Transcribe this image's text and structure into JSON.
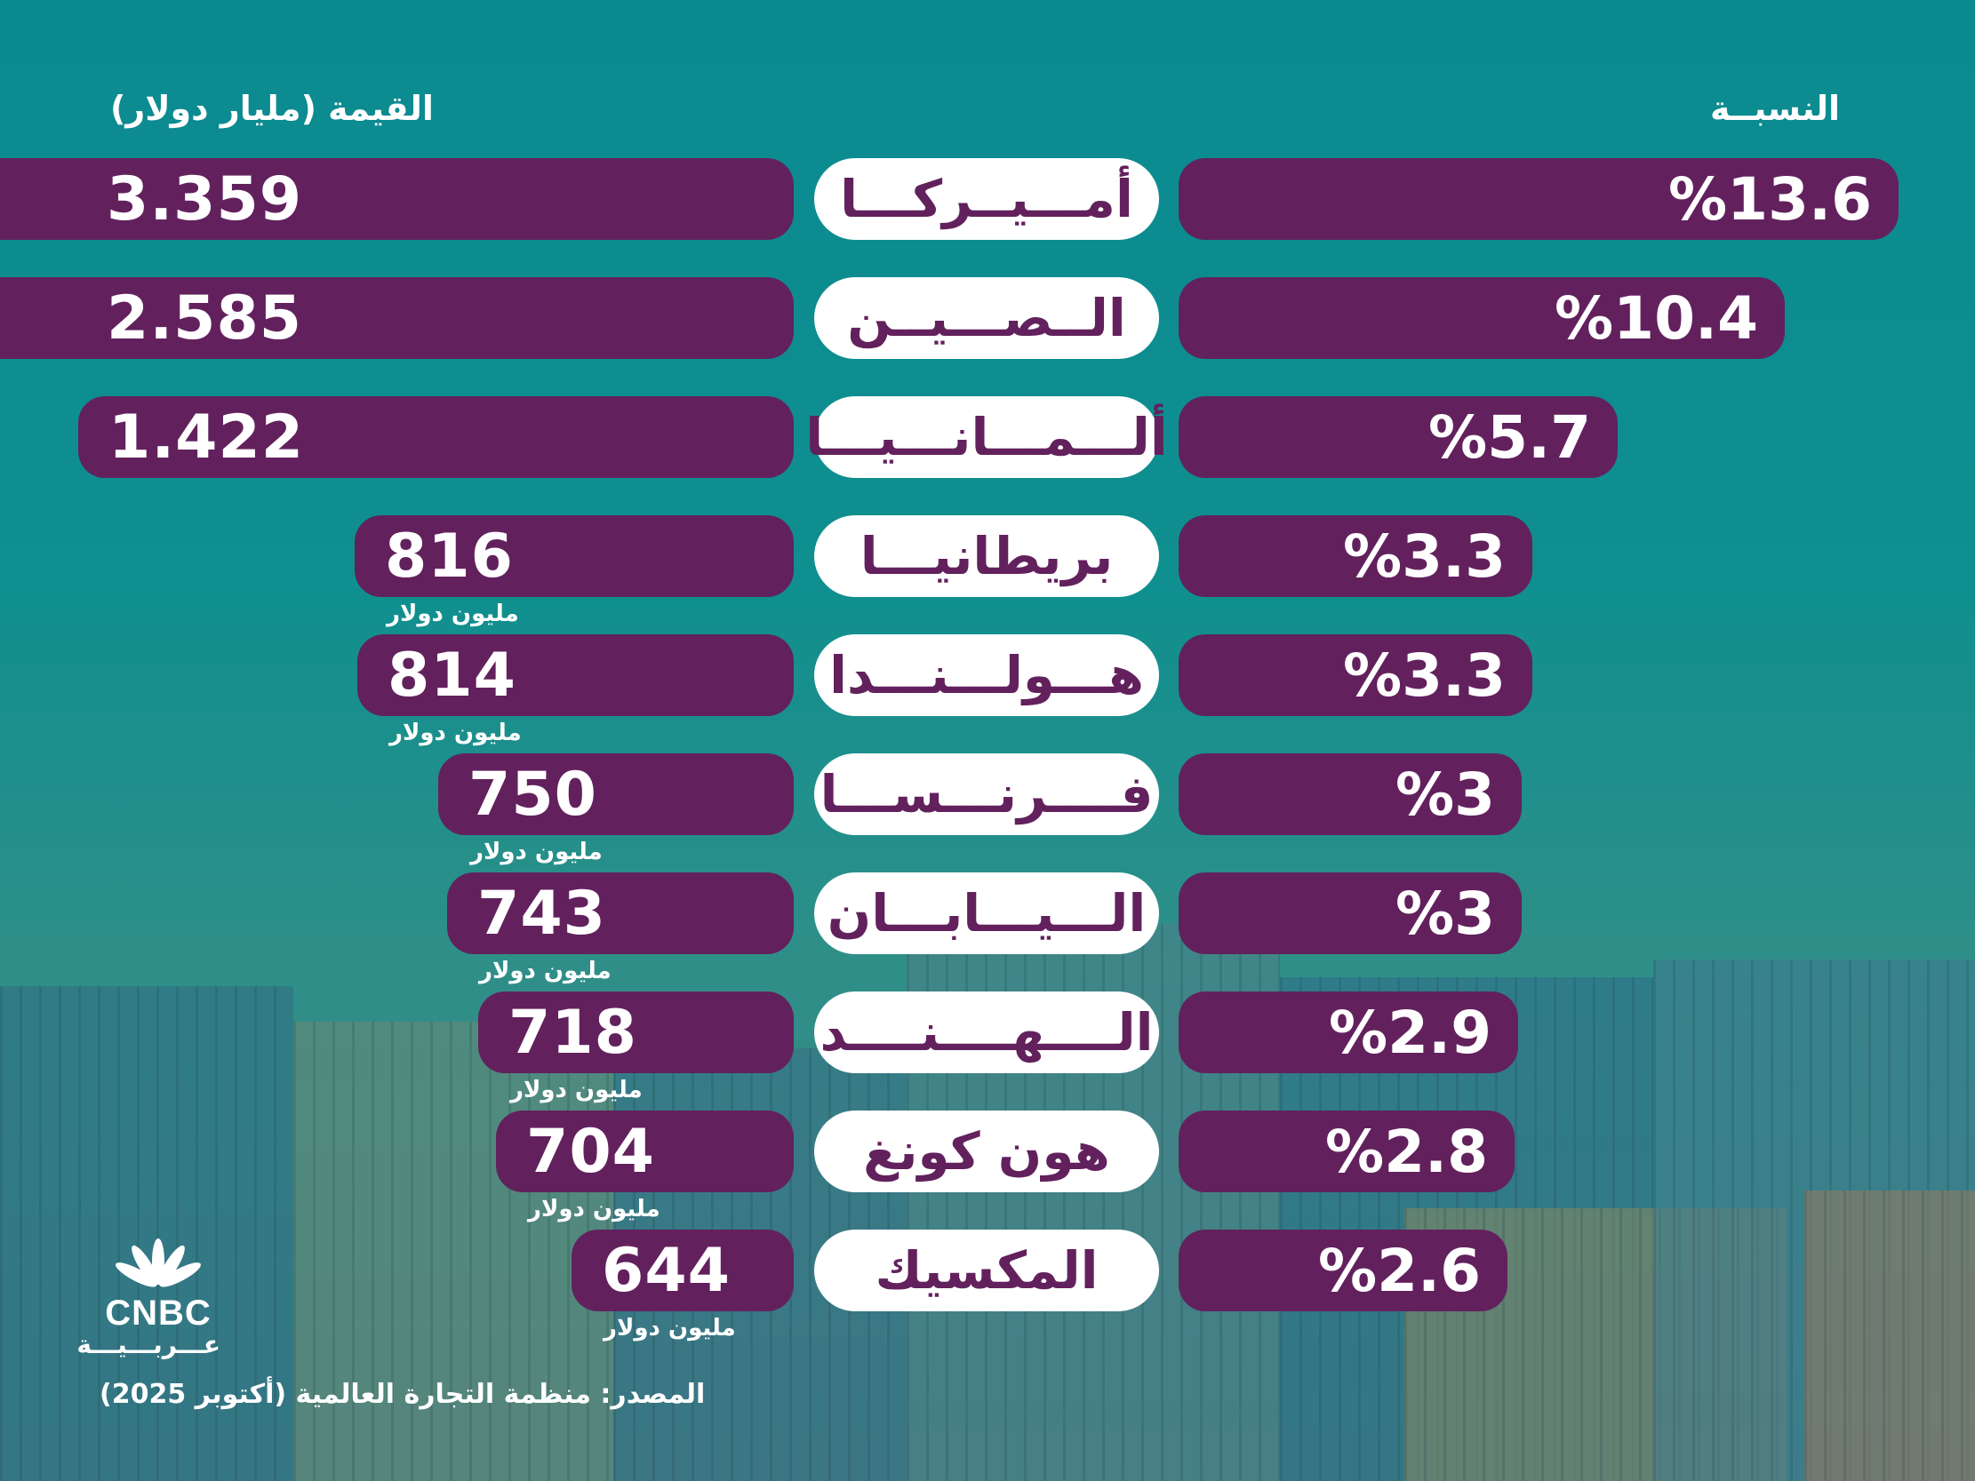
{
  "header": {
    "value_title": "القيمة (مليار دولار)",
    "share_title": "النسبــة"
  },
  "chart_data": {
    "type": "bar",
    "categories": [
      "أمـــيــركـــا",
      "الــصـــيــن",
      "ألـــمـــانـــيـــا",
      "بريطانيـــا",
      "هـــولـــنـــدا",
      "فــــرنـــســـا",
      "الـــيـــابـــان",
      "الــــهــــنــــد",
      "هون كونغ",
      "المكسيك"
    ],
    "series": [
      {
        "values": [
          3359,
          2585,
          1422,
          816,
          814,
          750,
          743,
          718,
          704,
          644
        ],
        "labels": [
          "3.359",
          "2.585",
          "1.422",
          "816",
          "814",
          "750",
          "743",
          "718",
          "704",
          "644"
        ],
        "units": [
          "",
          "",
          "",
          "مليون دولار",
          "مليون دولار",
          "مليون دولار",
          "مليون دولار",
          "مليون دولار",
          "مليون دولار",
          "مليون دولار"
        ]
      },
      {
        "values": [
          13.6,
          10.4,
          5.7,
          3.3,
          3.3,
          3,
          3,
          2.9,
          2.8,
          2.6
        ],
        "labels": [
          "%13.6",
          "%10.4",
          "%5.7",
          "%3.3",
          "%3.3",
          "%3",
          "%3",
          "%2.9",
          "%2.8",
          "%2.6"
        ]
      }
    ],
    "xlabel": "",
    "ylabel": ""
  },
  "footer": {
    "source": "المصدر: منظمة التجارة العالمية (أكتوبر 2025)",
    "logo_text": "CNBC",
    "logo_text_ar": "عـــربـــيـــة"
  },
  "colors": {
    "bar": "#62215d",
    "pill": "#ffffff",
    "text": "#ffffff",
    "pill_text": "#62215d"
  },
  "icons": {
    "logo": "peacock-icon"
  }
}
